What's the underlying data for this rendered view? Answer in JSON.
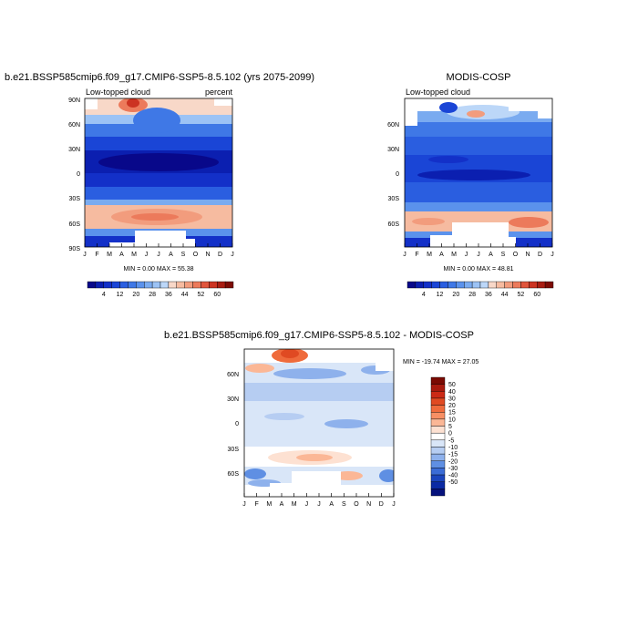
{
  "chart_data": [
    {
      "type": "heatmap",
      "title": "b.e21.BSSP585cmip6.f09_g17.CMIP6-SSP5-8.5.102 (yrs 2075-2099)",
      "left_label": "Low-topped cloud",
      "right_label": "percent",
      "x_ticks": [
        "J",
        "F",
        "M",
        "A",
        "M",
        "J",
        "J",
        "A",
        "S",
        "O",
        "N",
        "D",
        "J"
      ],
      "y_ticks": [
        "90N",
        "60N",
        "30N",
        "0",
        "30S",
        "60S",
        "90S"
      ],
      "xlim": [
        0,
        12
      ],
      "ylim": [
        -90,
        90
      ],
      "min": 0.0,
      "max": 55.38,
      "stats": "MIN =   0.00 MAX =  55.38",
      "colorbar_labels": [
        "4",
        "12",
        "20",
        "28",
        "36",
        "44",
        "52",
        "60"
      ]
    },
    {
      "type": "heatmap",
      "title": "MODIS-COSP",
      "left_label": "Low-topped cloud",
      "x_ticks": [
        "J",
        "F",
        "M",
        "A",
        "M",
        "J",
        "J",
        "A",
        "S",
        "O",
        "N",
        "D",
        "J"
      ],
      "y_ticks": [
        "60N",
        "30N",
        "0",
        "30S",
        "60S"
      ],
      "xlim": [
        0,
        12
      ],
      "ylim": [
        -90,
        90
      ],
      "min": 0.0,
      "max": 48.81,
      "stats": "MIN =   0.00 MAX =  48.81",
      "colorbar_labels": [
        "4",
        "12",
        "20",
        "28",
        "36",
        "44",
        "52",
        "60"
      ]
    },
    {
      "type": "heatmap",
      "title": "b.e21.BSSP585cmip6.f09_g17.CMIP6-SSP5-8.5.102 - MODIS-COSP",
      "x_ticks": [
        "J",
        "F",
        "M",
        "A",
        "M",
        "J",
        "J",
        "A",
        "S",
        "O",
        "N",
        "D",
        "J"
      ],
      "y_ticks": [
        "60N",
        "30N",
        "0",
        "30S",
        "60S"
      ],
      "xlim": [
        0,
        12
      ],
      "ylim": [
        -90,
        90
      ],
      "min": -19.74,
      "max": 27.05,
      "stats": "MIN = -19.74 MAX =  27.05",
      "colorbar_labels": [
        "50",
        "40",
        "30",
        "20",
        "15",
        "10",
        "5",
        "0",
        "-5",
        "-10",
        "-15",
        "-20",
        "-30",
        "-40",
        "-50"
      ]
    }
  ],
  "colors": {
    "seq": [
      "#08088a",
      "#0b1fb0",
      "#1330c8",
      "#1a45d6",
      "#2a5ee0",
      "#3f78e6",
      "#5b92ec",
      "#7aabf0",
      "#9cc3f5",
      "#bcd7f8",
      "#f8d8c8",
      "#f6bba0",
      "#f29c7d",
      "#ec7a5b",
      "#e0553c",
      "#cc3322",
      "#a81d12",
      "#7d0c05"
    ],
    "div": [
      "#7a0a03",
      "#a81a0e",
      "#cc2a16",
      "#e04a22",
      "#ef6b3c",
      "#f78f64",
      "#fbb796",
      "#fde1d2",
      "#ffffff",
      "#d9e6f8",
      "#b6cdf2",
      "#8eb1ec",
      "#5f8fe3",
      "#3b6cd6",
      "#1b45bd",
      "#0b2aa4",
      "#06127c"
    ]
  }
}
